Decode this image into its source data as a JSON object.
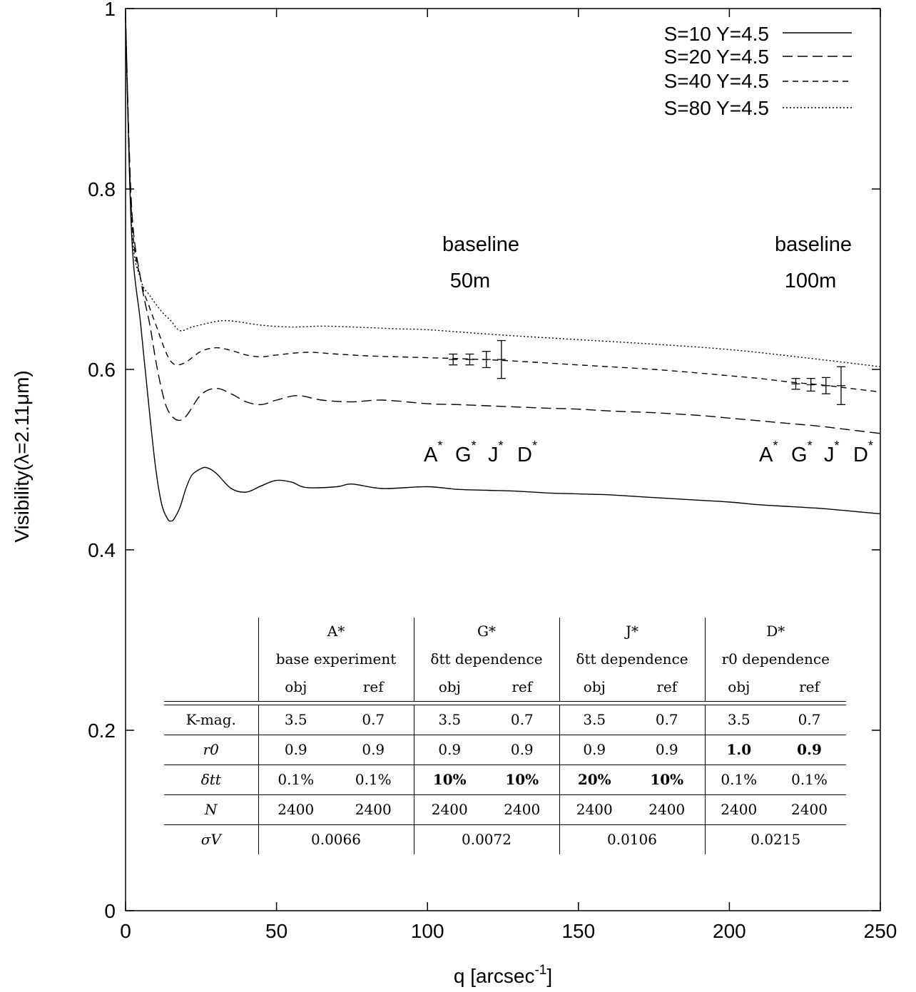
{
  "chart_data": {
    "type": "line",
    "xlabel_main": "q [arcsec",
    "xlabel_sup": "-1",
    "xlabel_end": "]",
    "ylabel": "Visibility(λ=2.11μm)",
    "xlim": [
      0,
      250
    ],
    "ylim": [
      0,
      1
    ],
    "x_ticks": [
      "0",
      "50",
      "100",
      "150",
      "200",
      "250"
    ],
    "y_ticks": [
      "0",
      "0.2",
      "0.4",
      "0.6",
      "0.8",
      "1"
    ],
    "legend_position": "top-right",
    "series": [
      {
        "name": "S=10 Y=4.5",
        "dash": "solid",
        "x": [
          0,
          2,
          5,
          8,
          10,
          12,
          14,
          15,
          16,
          18,
          20,
          22,
          25,
          27,
          30,
          35,
          40,
          45,
          50,
          55,
          60,
          70,
          75,
          85,
          100,
          110,
          120,
          130,
          140,
          150,
          160,
          170,
          180,
          190,
          200,
          210,
          220,
          230,
          240,
          250
        ],
        "y": [
          0.99,
          0.75,
          0.65,
          0.55,
          0.49,
          0.45,
          0.434,
          0.432,
          0.434,
          0.447,
          0.468,
          0.483,
          0.49,
          0.491,
          0.485,
          0.468,
          0.464,
          0.471,
          0.477,
          0.475,
          0.469,
          0.47,
          0.473,
          0.468,
          0.47,
          0.467,
          0.466,
          0.465,
          0.463,
          0.462,
          0.461,
          0.459,
          0.457,
          0.455,
          0.453,
          0.45,
          0.448,
          0.446,
          0.443,
          0.44
        ]
      },
      {
        "name": "S=20 Y=4.5",
        "dash": "14,7",
        "x": [
          0,
          2,
          5,
          8,
          10,
          12,
          14,
          17,
          20,
          25,
          30,
          35,
          40,
          45,
          50,
          57,
          65,
          75,
          85,
          100,
          110,
          125,
          140,
          150,
          160,
          175,
          190,
          200,
          210,
          220,
          230,
          240,
          250
        ],
        "y": [
          0.99,
          0.78,
          0.7,
          0.65,
          0.61,
          0.577,
          0.555,
          0.544,
          0.548,
          0.572,
          0.579,
          0.573,
          0.564,
          0.561,
          0.566,
          0.571,
          0.566,
          0.564,
          0.566,
          0.562,
          0.561,
          0.559,
          0.557,
          0.556,
          0.554,
          0.552,
          0.549,
          0.546,
          0.543,
          0.54,
          0.537,
          0.533,
          0.529
        ]
      },
      {
        "name": "S=40 Y=4.5",
        "dash": "8,6",
        "x": [
          0,
          2,
          5,
          8,
          10,
          13,
          15,
          17,
          20,
          25,
          30,
          35,
          40,
          45,
          50,
          60,
          70,
          80,
          90,
          100,
          110,
          125,
          140,
          150,
          160,
          175,
          190,
          200,
          210,
          220,
          230,
          240,
          250
        ],
        "y": [
          0.99,
          0.77,
          0.7,
          0.668,
          0.65,
          0.622,
          0.609,
          0.605,
          0.608,
          0.62,
          0.624,
          0.621,
          0.616,
          0.614,
          0.616,
          0.619,
          0.617,
          0.615,
          0.614,
          0.613,
          0.612,
          0.61,
          0.607,
          0.605,
          0.603,
          0.6,
          0.596,
          0.593,
          0.59,
          0.586,
          0.583,
          0.579,
          0.575
        ]
      },
      {
        "name": "S=80 Y=4.5",
        "dash": "2,3",
        "x": [
          0,
          2,
          5,
          8,
          12,
          15,
          18,
          22,
          27,
          32,
          37,
          45,
          55,
          65,
          75,
          90,
          100,
          125,
          150,
          175,
          200,
          225,
          250
        ],
        "y": [
          0.99,
          0.76,
          0.7,
          0.682,
          0.664,
          0.654,
          0.643,
          0.647,
          0.651,
          0.654,
          0.653,
          0.649,
          0.647,
          0.648,
          0.647,
          0.645,
          0.644,
          0.638,
          0.633,
          0.628,
          0.622,
          0.613,
          0.603
        ]
      }
    ],
    "error_bars": [
      {
        "label": "A*",
        "x": 108.5,
        "y": 0.611,
        "err": 0.006
      },
      {
        "label": "G*",
        "x": 114,
        "y": 0.611,
        "err": 0.006
      },
      {
        "label": "J*",
        "x": 119.5,
        "y": 0.611,
        "err": 0.009
      },
      {
        "label": "D*",
        "x": 124.5,
        "y": 0.611,
        "err": 0.021
      },
      {
        "label": "A*",
        "x": 222,
        "y": 0.584,
        "err": 0.006
      },
      {
        "label": "G*",
        "x": 227,
        "y": 0.583,
        "err": 0.007
      },
      {
        "label": "J*",
        "x": 232,
        "y": 0.582,
        "err": 0.009
      },
      {
        "label": "D*",
        "x": 237,
        "y": 0.582,
        "err": 0.021
      }
    ],
    "annotations": [
      {
        "line1": "baseline",
        "line2": "50m",
        "labels": [
          "A",
          "G",
          "J",
          "D"
        ],
        "star": "*"
      },
      {
        "line1": "baseline",
        "line2": "100m",
        "labels": [
          "A",
          "G",
          "J",
          "D"
        ],
        "star": "*"
      }
    ]
  },
  "table": {
    "groups": [
      {
        "name": "A*",
        "desc": "base experiment"
      },
      {
        "name": "G*",
        "desc": "δtt dependence"
      },
      {
        "name": "J*",
        "desc": "δtt dependence"
      },
      {
        "name": "D*",
        "desc": "r0 dependence"
      }
    ],
    "obj": "obj",
    "ref": "ref",
    "rows": [
      {
        "label": "K-mag.",
        "values": [
          "3.5",
          "0.7",
          "3.5",
          "0.7",
          "3.5",
          "0.7",
          "3.5",
          "0.7"
        ]
      },
      {
        "label": "r0",
        "values": [
          "0.9",
          "0.9",
          "0.9",
          "0.9",
          "0.9",
          "0.9",
          "1.0",
          "0.9"
        ]
      },
      {
        "label": "δtt",
        "values": [
          "0.1%",
          "0.1%",
          "10%",
          "10%",
          "20%",
          "10%",
          "0.1%",
          "0.1%"
        ]
      },
      {
        "label": "N",
        "values": [
          "2400",
          "2400",
          "2400",
          "2400",
          "2400",
          "2400",
          "2400",
          "2400"
        ]
      }
    ],
    "sigma_label": "σV",
    "sigma": [
      "0.0066",
      "0.0072",
      "0.0106",
      "0.0215"
    ]
  }
}
